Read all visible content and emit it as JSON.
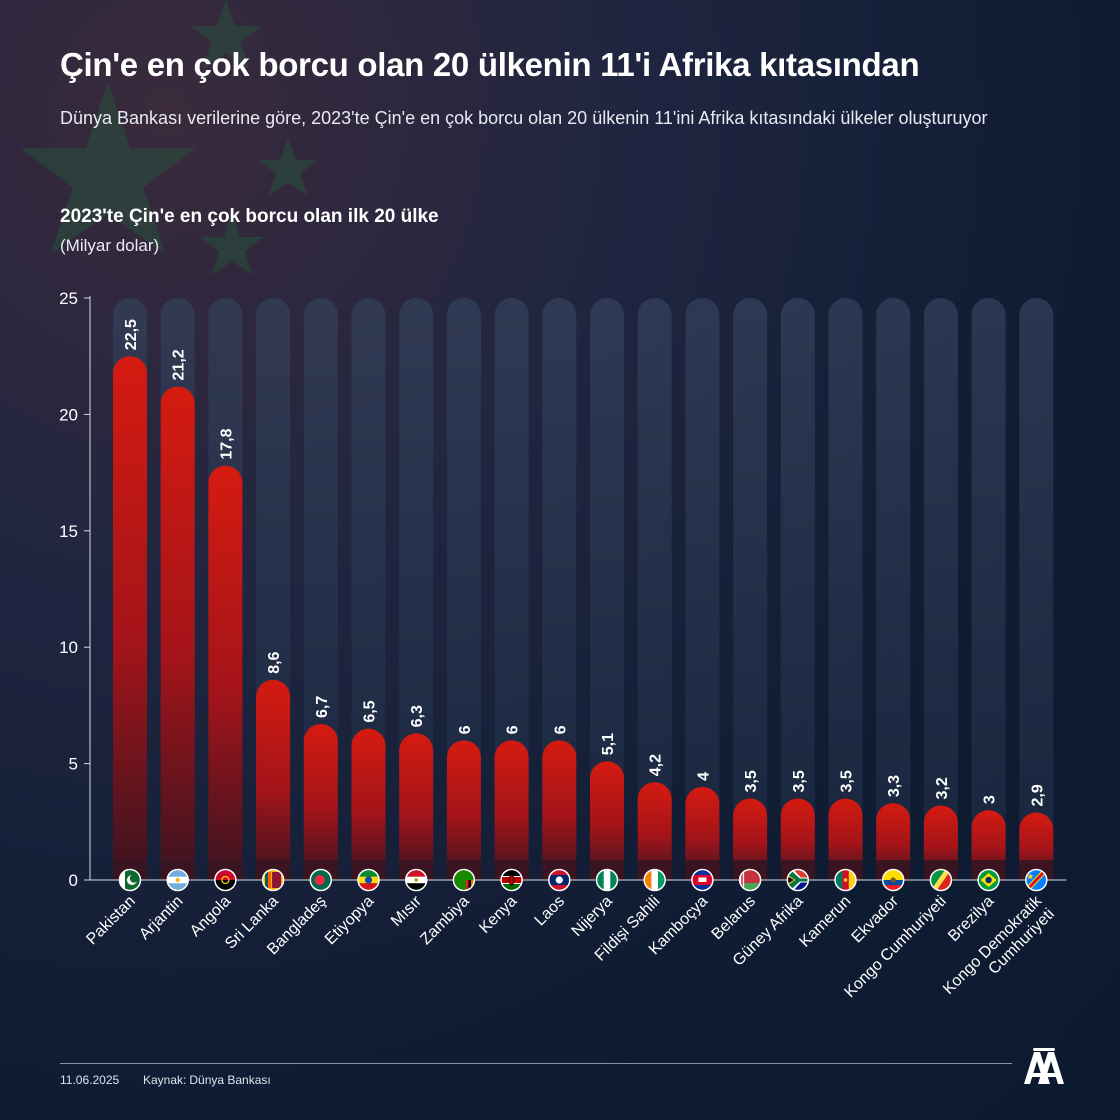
{
  "header": {
    "title": "Çin'e en çok borcu olan 20 ülkenin 11'i Afrika kıtasından",
    "subtitle": "Dünya Bankası verilerine göre, 2023'te Çin'e en çok borcu olan 20 ülkenin 11'ini Afrika kıtasındaki ülkeler oluşturuyor"
  },
  "chart_data": {
    "type": "bar",
    "title": "2023'te Çin'e en çok borcu olan ilk 20 ülke",
    "ylabel": "(Milyar dolar)",
    "xlabel": "",
    "ylim": [
      0,
      25
    ],
    "yticks": [
      0,
      5,
      10,
      15,
      20,
      25
    ],
    "grid": false,
    "categories": [
      "Pakistan",
      "Arjantin",
      "Angola",
      "Sri Lanka",
      "Bangladeş",
      "Etiyopya",
      "Mısır",
      "Zambiya",
      "Kenya",
      "Laos",
      "Nijerya",
      "Fildişi Sahili",
      "Kamboçya",
      "Belarus",
      "Güney Afrika",
      "Kamerun",
      "Ekvador",
      "Kongo Cumhuriyeti",
      "Brezilya",
      "Kongo Demokratik Cumhuriyeti"
    ],
    "values": [
      22.5,
      21.2,
      17.8,
      8.6,
      6.7,
      6.5,
      6.3,
      6,
      6,
      6,
      5.1,
      4.2,
      4,
      3.5,
      3.5,
      3.5,
      3.3,
      3.2,
      3,
      2.9
    ],
    "value_labels": [
      "22,5",
      "21,2",
      "17,8",
      "8,6",
      "6,7",
      "6,5",
      "6,3",
      "6",
      "6",
      "6",
      "5,1",
      "4,2",
      "4",
      "3,5",
      "3,5",
      "3,5",
      "3,3",
      "3,2",
      "3",
      "2,9"
    ],
    "category_labels": [
      "Pakistan",
      "Arjantin",
      "Angola",
      "Sri Lanka",
      "Bangladeş",
      "Etiyopya",
      "Mısır",
      "Zambiya",
      "Kenya",
      "Laos",
      "Nijerya",
      "Fildişi Sahili",
      "Kamboçya",
      "Belarus",
      "Güney Afrika",
      "Kamerun",
      "Ekvador",
      "Kongo Cumhuriyeti",
      "Brezilya",
      "Kongo Demokratik\nCumhuriyeti"
    ],
    "flags": [
      "pakistan-flag-icon",
      "argentina-flag-icon",
      "angola-flag-icon",
      "sri-lanka-flag-icon",
      "bangladesh-flag-icon",
      "ethiopia-flag-icon",
      "egypt-flag-icon",
      "zambia-flag-icon",
      "kenya-flag-icon",
      "laos-flag-icon",
      "nigeria-flag-icon",
      "ivory-coast-flag-icon",
      "cambodia-flag-icon",
      "belarus-flag-icon",
      "south-africa-flag-icon",
      "cameroon-flag-icon",
      "ecuador-flag-icon",
      "congo-flag-icon",
      "brazil-flag-icon",
      "dr-congo-flag-icon"
    ],
    "colors": {
      "bar_top": "#d01a10",
      "bar_bottom": "#3a1420",
      "track": "#2c3b55"
    }
  },
  "footer": {
    "date": "11.06.2025",
    "source_label": "Kaynak:",
    "source_value": "Dünya Bankası"
  },
  "logo": {
    "name": "aa-logo-icon"
  }
}
